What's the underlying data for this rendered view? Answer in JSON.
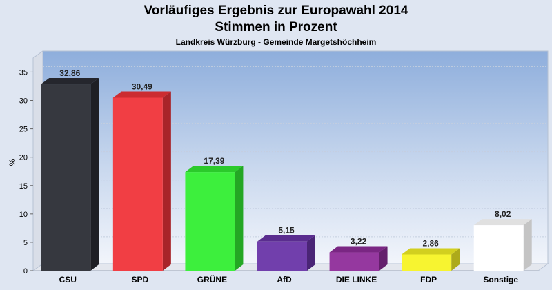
{
  "chart_data": {
    "type": "bar",
    "title": "Vorläufiges Ergebnis zur Europawahl 2014",
    "subtitle_line2": "Stimmen in Prozent",
    "subtitle": "Landkreis Würzburg - Gemeinde Margetshöchheim",
    "ylabel": "%",
    "xlabel": "",
    "ylim": [
      0,
      37
    ],
    "yticks": [
      0,
      5,
      10,
      15,
      20,
      25,
      30,
      35
    ],
    "grid": true,
    "categories": [
      "CSU",
      "SPD",
      "GRÜNE",
      "AfD",
      "DIE LINKE",
      "FDP",
      "Sonstige"
    ],
    "values": [
      32.86,
      30.49,
      17.39,
      5.15,
      3.22,
      2.86,
      8.02
    ],
    "value_labels": [
      "32,86",
      "30,49",
      "17,39",
      "5,15",
      "3,22",
      "2,86",
      "8,02"
    ],
    "colors": [
      "#2b2d35",
      "#f0343a",
      "#33ee33",
      "#6a35a8",
      "#8f2d9a",
      "#f7f325",
      "#ffffff"
    ]
  }
}
